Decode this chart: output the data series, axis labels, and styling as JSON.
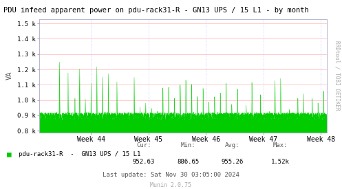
{
  "title": "PDU infeed apparent power on pdu-rack31-R - GN13 UPS / 15 L1 - by month",
  "ylabel": "VA",
  "bg_color": "#ffffff",
  "fill_color": "#00cc00",
  "line_color": "#00cc00",
  "grid_color_h": "#ff9999",
  "grid_color_v": "#ccccff",
  "yticks": [
    800,
    900,
    1000,
    1100,
    1200,
    1300,
    1400,
    1500
  ],
  "ytick_labels": [
    "0.8 k",
    "0.9 k",
    "1.0 k",
    "1.1 k",
    "1.2 k",
    "1.3 k",
    "1.4 k",
    "1.5 k"
  ],
  "ylim": [
    790,
    1530
  ],
  "xlim": [
    0,
    5
  ],
  "xtick_positions": [
    0.9,
    1.9,
    2.9,
    3.9,
    4.9
  ],
  "xtick_labels": [
    "Week 44",
    "Week 45",
    "Week 46",
    "Week 47",
    "Week 48"
  ],
  "legend_label": "pdu-rack31-R  -  GN13 UPS / 15 L1",
  "cur": "952.63",
  "min": "886.65",
  "avg": "955.26",
  "max": "1.52k",
  "last_update": "Last update: Sat Nov 30 03:05:00 2024",
  "munin_version": "Munin 2.0.75",
  "right_label": "RRDtool / TOBI OETIKER",
  "baseline": 790
}
